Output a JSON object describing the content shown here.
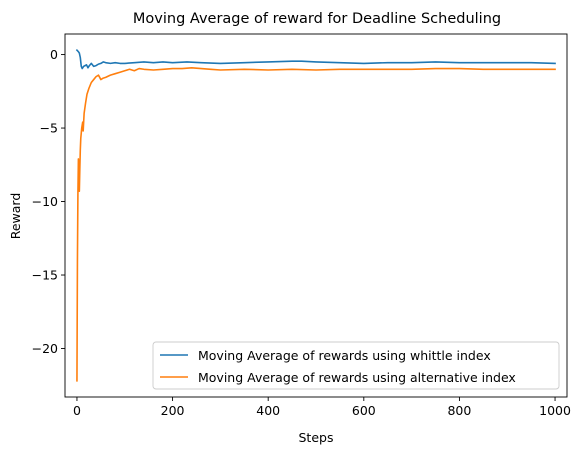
{
  "chart_data": {
    "type": "line",
    "title": "Moving Average of reward for Deadline Scheduling",
    "xlabel": "Steps",
    "ylabel": "Reward",
    "xlim": [
      -25,
      1025
    ],
    "ylim": [
      -23.3,
      1.4
    ],
    "xticks": [
      0,
      200,
      400,
      600,
      800,
      1000
    ],
    "yticks": [
      0,
      -5,
      -10,
      -15,
      -20
    ],
    "xtick_labels": [
      "0",
      "200",
      "400",
      "600",
      "800",
      "1000"
    ],
    "ytick_labels": [
      "0",
      "−5",
      "−10",
      "−15",
      "−20"
    ],
    "grid": false,
    "legend_position": "lower-right",
    "series": [
      {
        "name": "Moving Average of rewards using whittle index",
        "color": "#1f77b4",
        "points": [
          [
            0,
            0.3
          ],
          [
            3,
            0.2
          ],
          [
            5,
            0.1
          ],
          [
            7,
            -0.2
          ],
          [
            9,
            -0.8
          ],
          [
            11,
            -0.95
          ],
          [
            14,
            -0.8
          ],
          [
            17,
            -0.75
          ],
          [
            20,
            -0.7
          ],
          [
            23,
            -0.9
          ],
          [
            26,
            -0.75
          ],
          [
            30,
            -0.6
          ],
          [
            35,
            -0.8
          ],
          [
            40,
            -0.75
          ],
          [
            45,
            -0.65
          ],
          [
            50,
            -0.6
          ],
          [
            55,
            -0.5
          ],
          [
            60,
            -0.55
          ],
          [
            70,
            -0.6
          ],
          [
            80,
            -0.55
          ],
          [
            90,
            -0.6
          ],
          [
            100,
            -0.6
          ],
          [
            120,
            -0.55
          ],
          [
            140,
            -0.5
          ],
          [
            160,
            -0.55
          ],
          [
            180,
            -0.5
          ],
          [
            200,
            -0.55
          ],
          [
            230,
            -0.5
          ],
          [
            260,
            -0.55
          ],
          [
            300,
            -0.6
          ],
          [
            350,
            -0.55
          ],
          [
            400,
            -0.5
          ],
          [
            450,
            -0.45
          ],
          [
            470,
            -0.45
          ],
          [
            500,
            -0.5
          ],
          [
            550,
            -0.55
          ],
          [
            600,
            -0.6
          ],
          [
            650,
            -0.55
          ],
          [
            700,
            -0.55
          ],
          [
            750,
            -0.5
          ],
          [
            800,
            -0.55
          ],
          [
            850,
            -0.55
          ],
          [
            900,
            -0.55
          ],
          [
            950,
            -0.55
          ],
          [
            1000,
            -0.6
          ]
        ]
      },
      {
        "name": "Moving Average of rewards using alternative index",
        "color": "#ff7f0e",
        "points": [
          [
            0,
            -22.2
          ],
          [
            1,
            -14
          ],
          [
            2,
            -9.5
          ],
          [
            3,
            -7.1
          ],
          [
            4,
            -8.2
          ],
          [
            5,
            -9.3
          ],
          [
            6,
            -7.8
          ],
          [
            7,
            -6.5
          ],
          [
            8,
            -5.7
          ],
          [
            10,
            -5.0
          ],
          [
            12,
            -4.6
          ],
          [
            13,
            -5.2
          ],
          [
            15,
            -4.0
          ],
          [
            18,
            -3.3
          ],
          [
            21,
            -2.7
          ],
          [
            25,
            -2.3
          ],
          [
            30,
            -1.9
          ],
          [
            35,
            -1.7
          ],
          [
            40,
            -1.5
          ],
          [
            45,
            -1.4
          ],
          [
            50,
            -1.7
          ],
          [
            55,
            -1.6
          ],
          [
            60,
            -1.55
          ],
          [
            70,
            -1.4
          ],
          [
            80,
            -1.3
          ],
          [
            90,
            -1.2
          ],
          [
            100,
            -1.1
          ],
          [
            110,
            -1.0
          ],
          [
            120,
            -1.1
          ],
          [
            130,
            -0.95
          ],
          [
            140,
            -1.0
          ],
          [
            160,
            -1.05
          ],
          [
            180,
            -1.0
          ],
          [
            200,
            -0.95
          ],
          [
            220,
            -0.95
          ],
          [
            240,
            -0.9
          ],
          [
            260,
            -0.95
          ],
          [
            280,
            -1.0
          ],
          [
            300,
            -1.05
          ],
          [
            350,
            -1.0
          ],
          [
            400,
            -1.05
          ],
          [
            450,
            -1.0
          ],
          [
            500,
            -1.05
          ],
          [
            550,
            -1.0
          ],
          [
            600,
            -1.0
          ],
          [
            650,
            -1.0
          ],
          [
            700,
            -1.0
          ],
          [
            750,
            -0.95
          ],
          [
            800,
            -0.95
          ],
          [
            850,
            -1.0
          ],
          [
            900,
            -1.0
          ],
          [
            950,
            -1.0
          ],
          [
            1000,
            -1.0
          ]
        ]
      }
    ]
  }
}
